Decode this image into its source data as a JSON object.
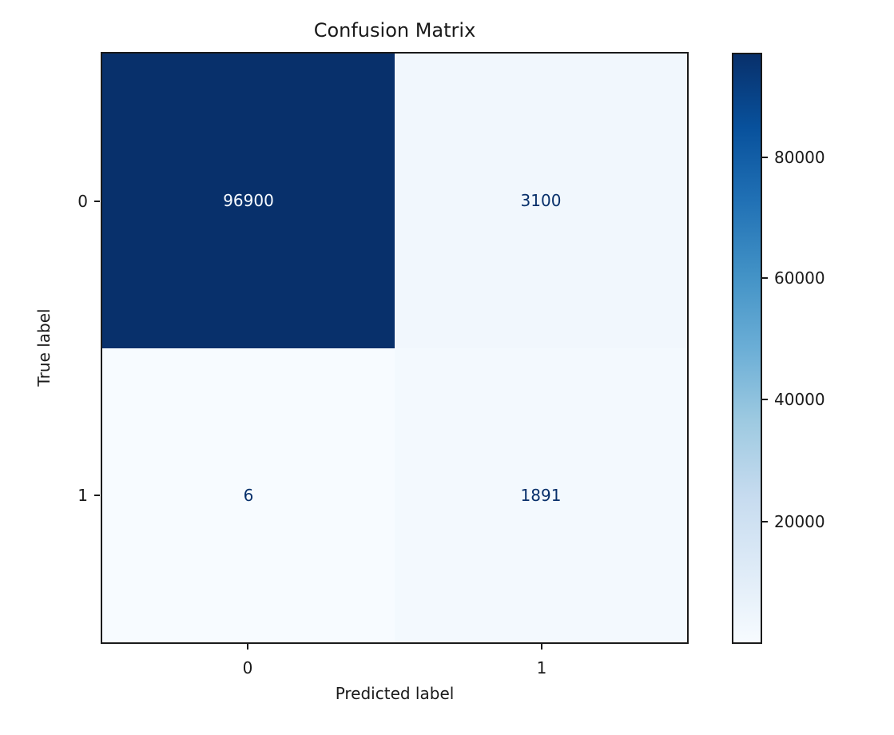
{
  "chart_data": {
    "type": "heatmap",
    "title": "Confusion Matrix",
    "xlabel": "Predicted label",
    "ylabel": "True label",
    "x_tick_labels": [
      "0",
      "1"
    ],
    "y_tick_labels": [
      "0",
      "1"
    ],
    "rows": [
      {
        "true_label": "0",
        "values": [
          96900,
          3100
        ]
      },
      {
        "true_label": "1",
        "values": [
          6,
          1891
        ]
      }
    ],
    "colormap": "Blues",
    "vmin": 6,
    "vmax": 96900,
    "colorbar_tick_values": [
      20000,
      40000,
      60000,
      80000
    ],
    "colorbar_position": "right",
    "grid": false
  },
  "cell_colors": [
    {
      "bg": "#08306b",
      "fg": "#f7fbff"
    },
    {
      "bg": "#f1f7fd",
      "fg": "#08306b"
    },
    {
      "bg": "#f7fbff",
      "fg": "#08306b"
    },
    {
      "bg": "#f3f9fe",
      "fg": "#08306b"
    }
  ],
  "colorbar": {
    "tick_labels_top_to_bottom": [
      "80000",
      "60000",
      "40000",
      "20000"
    ],
    "gradient_stops_top_to_bottom": [
      "#08306b",
      "#08519c",
      "#2171b5",
      "#4292c6",
      "#6baed6",
      "#9ecae1",
      "#c6dbef",
      "#deebf7",
      "#f7fbff"
    ]
  },
  "colors": {
    "text": "#1a1a1a",
    "spine": "#1a1a1a",
    "background": "#ffffff"
  }
}
